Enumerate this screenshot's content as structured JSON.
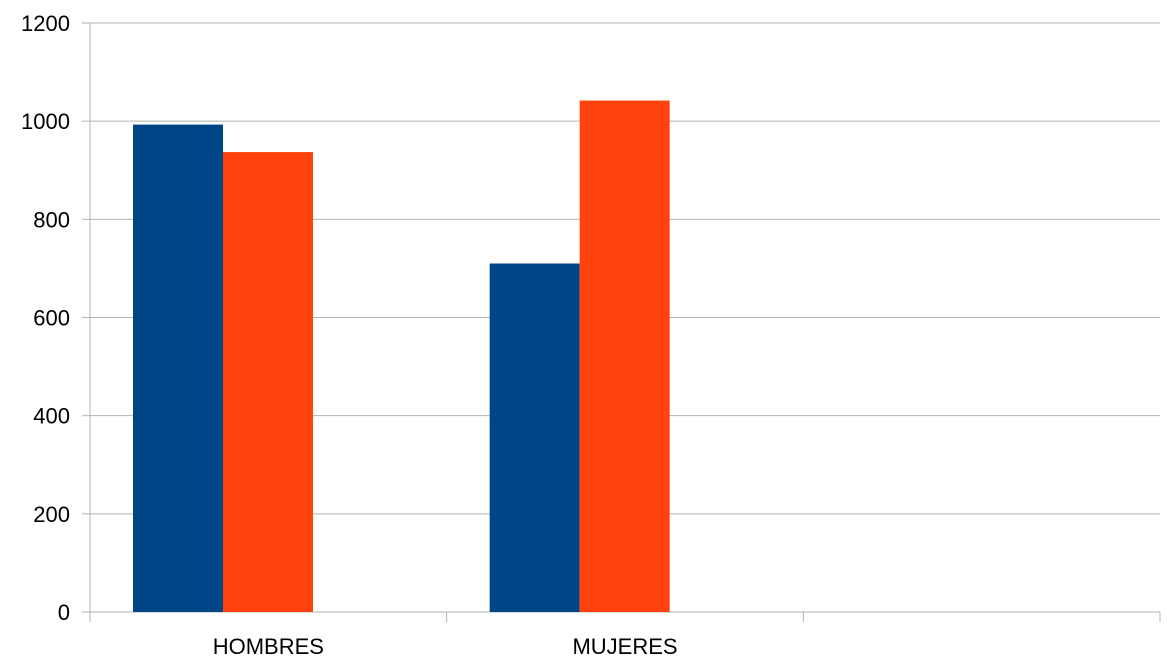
{
  "chart_data": {
    "type": "bar",
    "title": "",
    "xlabel": "",
    "ylabel": "",
    "categories": [
      "HOMBRES",
      "MUJERES",
      ""
    ],
    "series": [
      {
        "values": [
          993,
          710,
          null
        ],
        "color": "#004586"
      },
      {
        "values": [
          937,
          1042,
          null
        ],
        "color": "#ff420e"
      }
    ],
    "ylim": [
      0,
      1200
    ],
    "yticks": [
      0,
      200,
      400,
      600,
      800,
      1000,
      1200
    ],
    "grid": true,
    "legend": "none"
  }
}
